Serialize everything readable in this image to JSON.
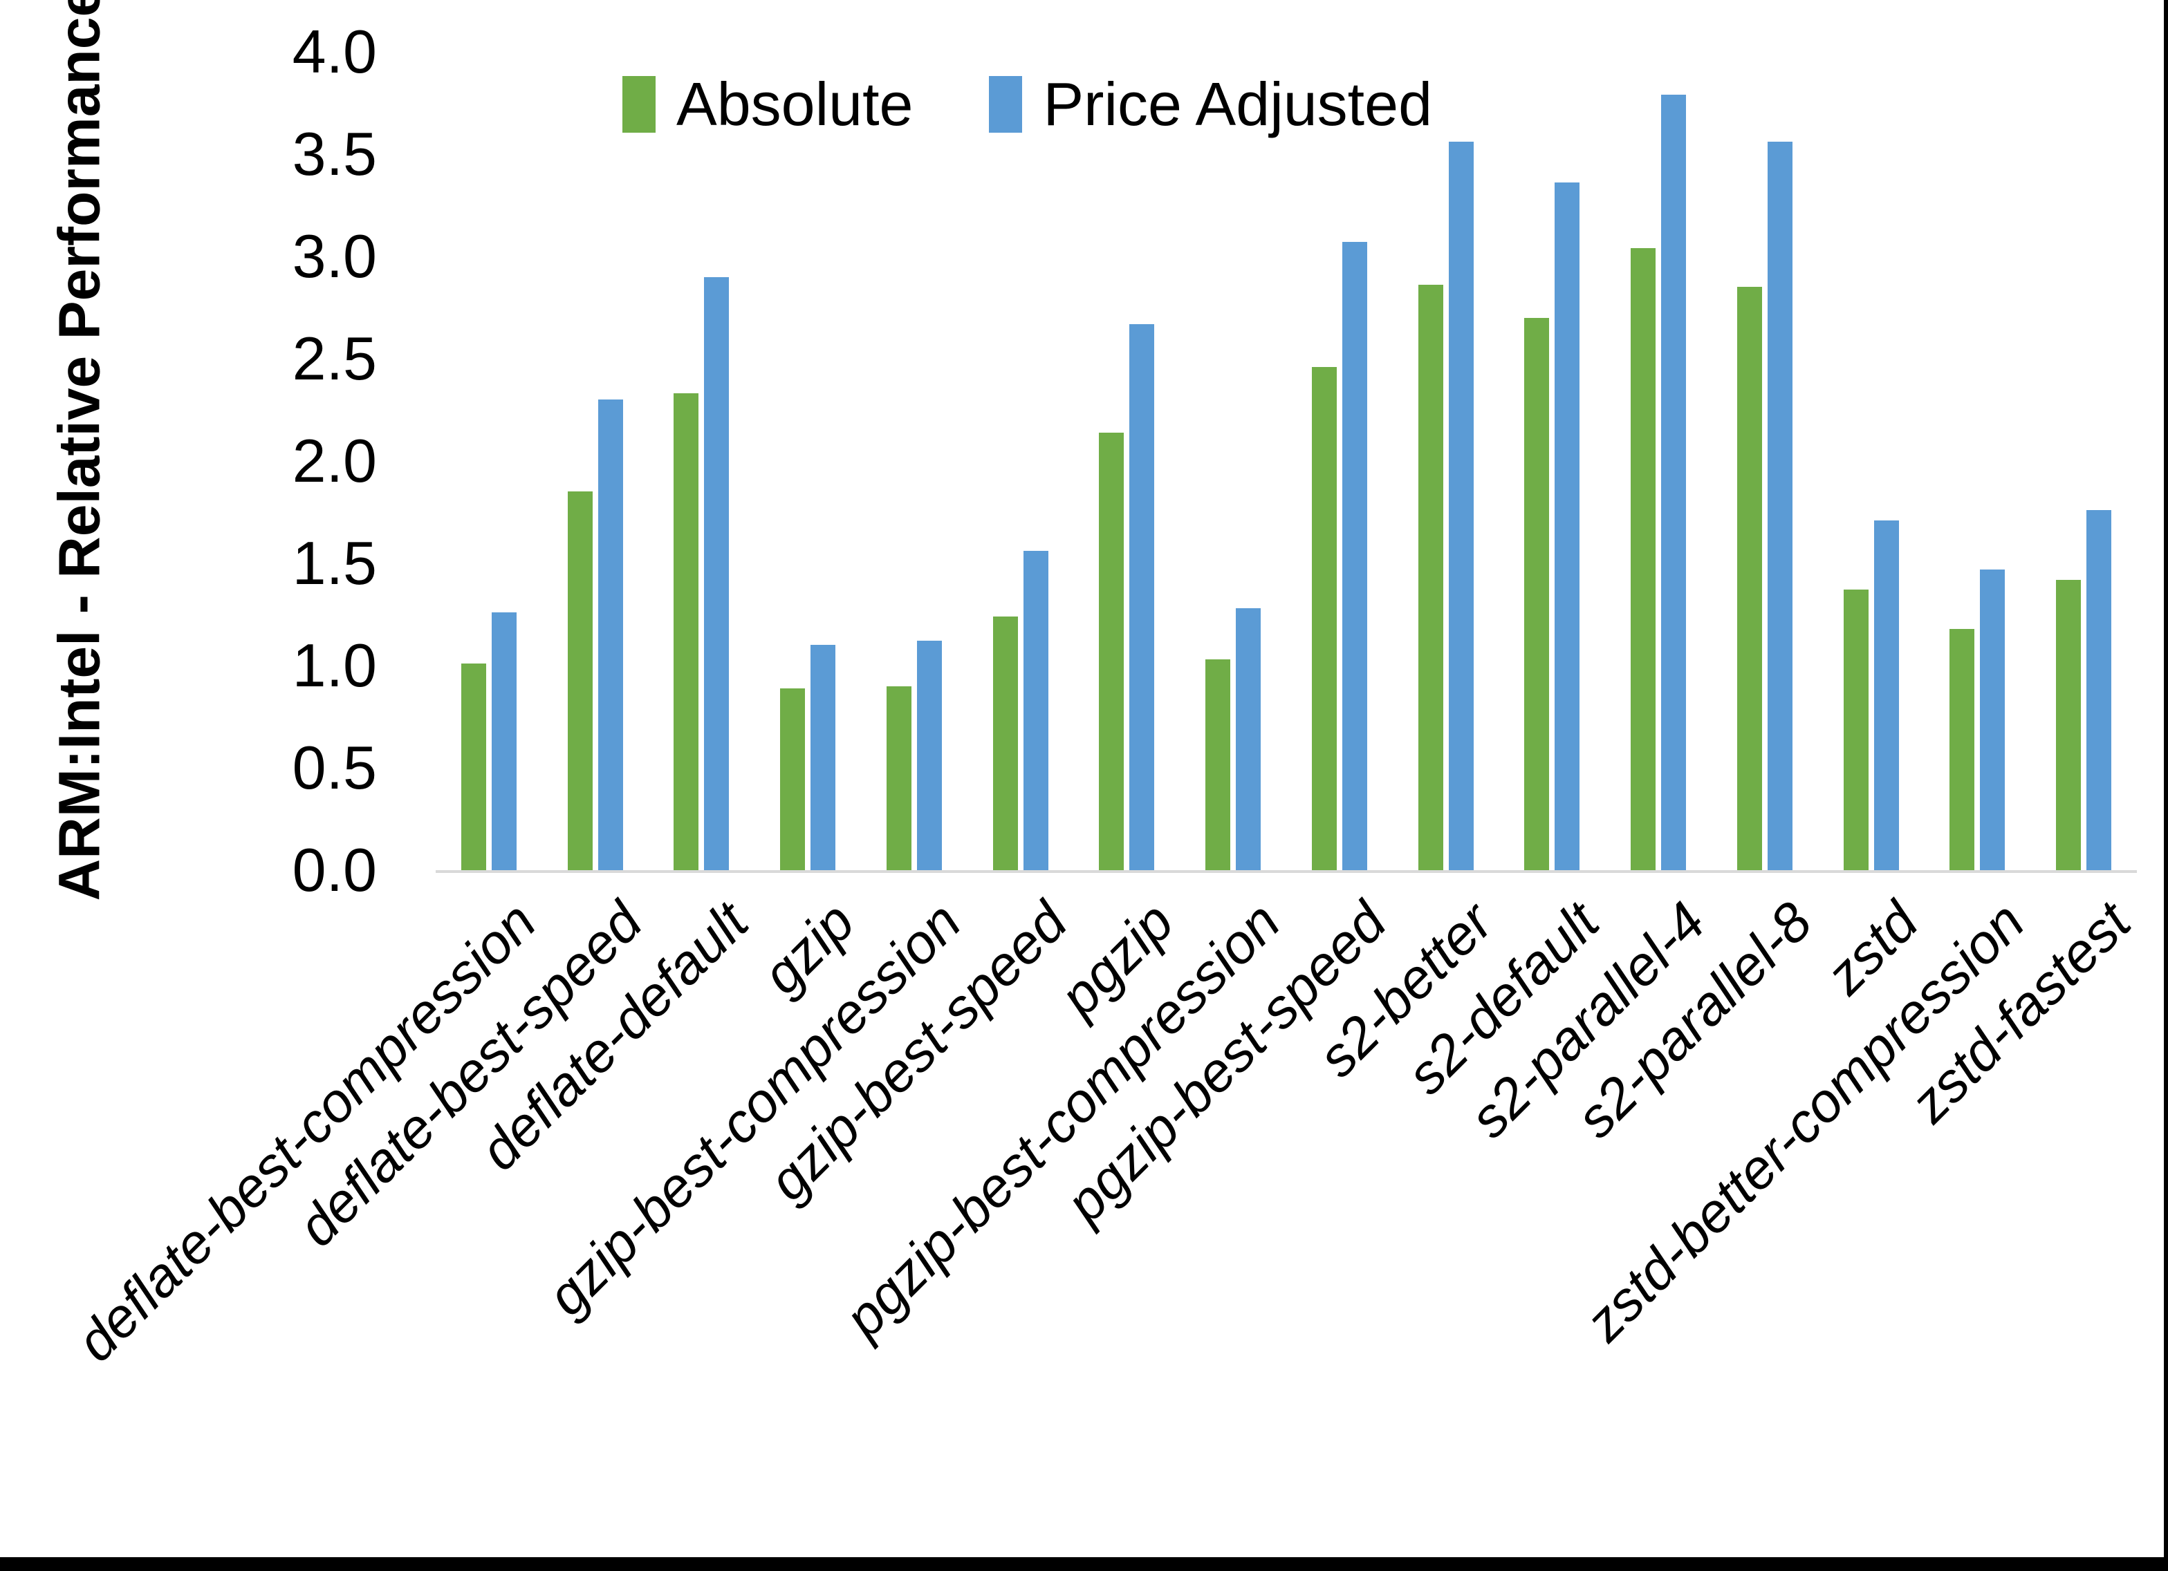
{
  "figure": {
    "background": "#FFFFFF",
    "frame_border_color": "#000000"
  },
  "legend": {
    "position": "top",
    "items": [
      {
        "label": "Absolute",
        "color": "#70AD47"
      },
      {
        "label": "Price Adjusted",
        "color": "#5B9BD5"
      }
    ]
  },
  "chart_data": {
    "type": "bar",
    "title": "",
    "xlabel": "",
    "ylabel": "ARM:Intel - Relative Performance",
    "ylim": [
      0.0,
      4.0
    ],
    "ytick_step": 0.5,
    "yticks": [
      "4.0",
      "3.5",
      "3.0",
      "2.5",
      "2.0",
      "1.5",
      "1.0",
      "0.5",
      "0.0"
    ],
    "grid": false,
    "legend_position": "top",
    "axis_line_color": "#D9D9D9",
    "categories": [
      "deflate-best-compression",
      "deflate-best-speed",
      "deflate-default",
      "gzip",
      "gzip-best-compression",
      "gzip-best-speed",
      "pgzip",
      "pgzip-best-compression",
      "pgzip-best-speed",
      "s2-better",
      "s2-default",
      "s2-parallel-4",
      "s2-parallel-8",
      "zstd",
      "zstd-better-compression",
      "zstd-fastest"
    ],
    "series": [
      {
        "name": "Absolute",
        "color": "#70AD47",
        "values": [
          1.01,
          1.85,
          2.33,
          0.89,
          0.9,
          1.24,
          2.14,
          1.03,
          2.46,
          2.86,
          2.7,
          3.04,
          2.85,
          1.37,
          1.18,
          1.42
        ]
      },
      {
        "name": "Price Adjusted",
        "color": "#5B9BD5",
        "values": [
          1.26,
          2.3,
          2.9,
          1.1,
          1.12,
          1.56,
          2.67,
          1.28,
          3.07,
          3.56,
          3.36,
          3.79,
          3.56,
          1.71,
          1.47,
          1.76
        ]
      }
    ]
  }
}
